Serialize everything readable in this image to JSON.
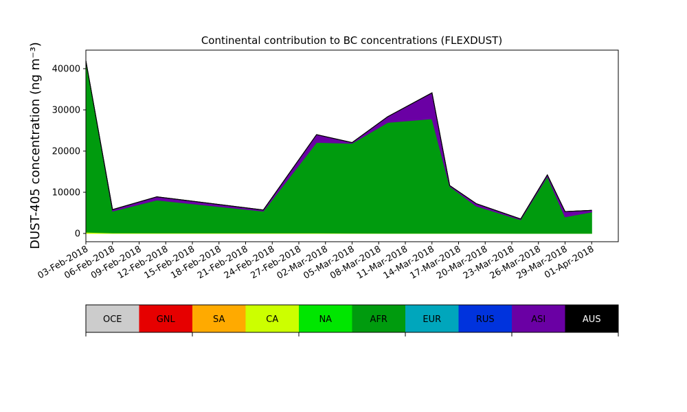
{
  "chart_data": {
    "type": "area",
    "title": "Continental contribution to BC concentrations (FLEXDUST)",
    "ylabel": "DUST-405 concentration (ng m⁻³)",
    "xlabel": "",
    "ylim": [
      -2000,
      44500
    ],
    "xlim": [
      "2018-02-03",
      "2018-04-04"
    ],
    "yticks": [
      0,
      10000,
      20000,
      30000,
      40000
    ],
    "xticks": [
      "03-Feb-2018",
      "06-Feb-2018",
      "09-Feb-2018",
      "12-Feb-2018",
      "15-Feb-2018",
      "18-Feb-2018",
      "21-Feb-2018",
      "24-Feb-2018",
      "27-Feb-2018",
      "02-Mar-2018",
      "05-Mar-2018",
      "08-Mar-2018",
      "11-Mar-2018",
      "14-Mar-2018",
      "17-Mar-2018",
      "20-Mar-2018",
      "23-Mar-2018",
      "26-Mar-2018",
      "29-Mar-2018",
      "01-Apr-2018"
    ],
    "x": [
      "2018-02-03",
      "2018-02-06",
      "2018-02-11",
      "2018-02-23",
      "2018-03-01",
      "2018-03-05",
      "2018-03-09",
      "2018-03-14",
      "2018-03-16",
      "2018-03-19",
      "2018-03-24",
      "2018-03-27",
      "2018-03-29",
      "2018-04-01"
    ],
    "stacked": true,
    "series": [
      {
        "name": "CA",
        "color": "#ccff00",
        "values": [
          300,
          120,
          100,
          100,
          100,
          60,
          40,
          30,
          30,
          30,
          20,
          20,
          20,
          20
        ]
      },
      {
        "name": "AFR",
        "color": "#009b0e",
        "values": [
          41600,
          5280,
          8000,
          5300,
          22000,
          21800,
          26900,
          27800,
          11400,
          6600,
          3300,
          13800,
          4000,
          5200
        ]
      },
      {
        "name": "ASI",
        "color": "#6a00a4",
        "values": [
          0,
          400,
          800,
          300,
          1900,
          200,
          1400,
          6300,
          200,
          600,
          200,
          400,
          1300,
          400
        ]
      },
      {
        "name": "AUS",
        "color": "#000000",
        "values": [
          0,
          0,
          0,
          0,
          0,
          0,
          0,
          0,
          0,
          0,
          0,
          0,
          0,
          0
        ]
      }
    ],
    "legend": {
      "placement": "bottom",
      "entries": [
        {
          "label": "OCE",
          "color": "#cccccc",
          "text_color": "#000000"
        },
        {
          "label": "GNL",
          "color": "#e60000",
          "text_color": "#000000"
        },
        {
          "label": "SA",
          "color": "#ffaa00",
          "text_color": "#000000"
        },
        {
          "label": "CA",
          "color": "#ccff00",
          "text_color": "#000000"
        },
        {
          "label": "NA",
          "color": "#00e600",
          "text_color": "#000000"
        },
        {
          "label": "AFR",
          "color": "#009b0e",
          "text_color": "#000000"
        },
        {
          "label": "EUR",
          "color": "#00a6bc",
          "text_color": "#000000"
        },
        {
          "label": "RUS",
          "color": "#0033dd",
          "text_color": "#000000"
        },
        {
          "label": "ASI",
          "color": "#6a00a4",
          "text_color": "#000000"
        },
        {
          "label": "AUS",
          "color": "#000000",
          "text_color": "#ffffff"
        }
      ]
    },
    "grid": false
  }
}
